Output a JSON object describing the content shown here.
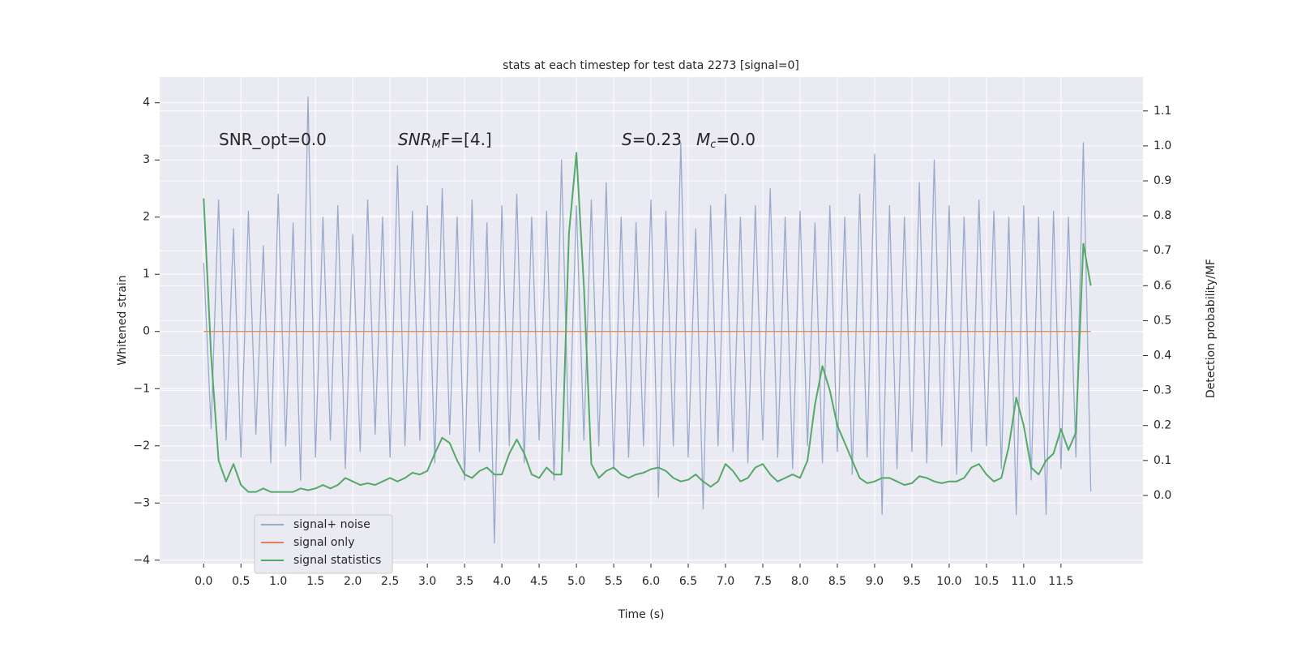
{
  "chart_data": {
    "type": "line",
    "title": "stats at each timestep for test data 2273 [signal=0]",
    "xlabel": "Time (s)",
    "ylabel": "Whitened strain",
    "y2label": "Detection probability/MF",
    "annotations": [
      [
        "SNR_opt=0.0"
      ],
      [
        "SNR",
        "M",
        "F=[4.]"
      ],
      [
        "S",
        "=0.23"
      ],
      [
        "M",
        "c",
        "=0.0"
      ]
    ],
    "x": [
      0,
      0.1,
      0.2,
      0.3,
      0.4,
      0.5,
      0.6,
      0.7,
      0.8,
      0.9,
      1,
      1.1,
      1.2,
      1.3,
      1.4,
      1.5,
      1.6,
      1.7,
      1.8,
      1.9,
      2,
      2.1,
      2.2,
      2.3,
      2.4,
      2.5,
      2.6,
      2.7,
      2.8,
      2.9,
      3,
      3.1,
      3.2,
      3.3,
      3.4,
      3.5,
      3.6,
      3.7,
      3.8,
      3.9,
      4,
      4.1,
      4.2,
      4.3,
      4.4,
      4.5,
      4.6,
      4.7,
      4.8,
      4.9,
      5,
      5.1,
      5.2,
      5.3,
      5.4,
      5.5,
      5.6,
      5.7,
      5.8,
      5.9,
      6,
      6.1,
      6.2,
      6.3,
      6.4,
      6.5,
      6.6,
      6.7,
      6.8,
      6.9,
      7,
      7.1,
      7.2,
      7.3,
      7.4,
      7.5,
      7.6,
      7.7,
      7.8,
      7.9,
      8,
      8.1,
      8.2,
      8.3,
      8.4,
      8.5,
      8.6,
      8.7,
      8.8,
      8.9,
      9,
      9.1,
      9.2,
      9.3,
      9.4,
      9.5,
      9.6,
      9.7,
      9.8,
      9.9,
      10,
      10.1,
      10.2,
      10.3,
      10.4,
      10.5,
      10.6,
      10.7,
      10.8,
      10.9,
      11,
      11.1,
      11.2,
      11.3,
      11.4,
      11.5,
      11.6,
      11.7,
      11.8,
      11.9
    ],
    "series": [
      {
        "name": "signal+ noise",
        "color": "#99aacd",
        "values": [
          1.2,
          -1.7,
          2.3,
          -1.9,
          1.8,
          -2.2,
          2.1,
          -1.8,
          1.5,
          -2.3,
          2.4,
          -2.0,
          1.9,
          -2.6,
          4.1,
          -2.2,
          2.0,
          -1.9,
          2.2,
          -2.4,
          1.7,
          -2.1,
          2.3,
          -1.8,
          2.0,
          -2.2,
          2.9,
          -2.0,
          2.1,
          -1.9,
          2.2,
          -2.3,
          2.5,
          -1.8,
          2.0,
          -2.6,
          2.3,
          -2.1,
          1.9,
          -3.7,
          2.2,
          -2.0,
          2.4,
          -2.3,
          2.0,
          -1.9,
          2.1,
          -2.6,
          3.0,
          -2.1,
          2.2,
          -1.9,
          2.3,
          -2.0,
          2.6,
          -2.4,
          2.0,
          -2.2,
          1.9,
          -2.0,
          2.3,
          -2.9,
          2.1,
          -2.0,
          3.3,
          -2.2,
          1.8,
          -3.1,
          2.2,
          -2.0,
          2.4,
          -2.1,
          2.0,
          -2.3,
          2.2,
          -1.9,
          2.5,
          -2.2,
          2.0,
          -2.4,
          2.1,
          -2.0,
          1.9,
          -2.3,
          2.2,
          -2.1,
          2.0,
          -2.5,
          2.4,
          -2.2,
          3.1,
          -3.2,
          2.2,
          -2.4,
          2.0,
          -2.1,
          2.6,
          -2.3,
          3.0,
          -2.0,
          2.2,
          -2.5,
          2.0,
          -2.1,
          2.3,
          -2.0,
          2.1,
          -2.4,
          2.0,
          -3.2,
          2.2,
          -2.6,
          2.0,
          -3.2,
          2.1,
          -2.4,
          2.0,
          -2.2,
          3.3,
          -2.8
        ]
      },
      {
        "name": "signal only",
        "color": "#dd8452",
        "values": [
          0,
          0,
          0,
          0,
          0,
          0,
          0,
          0,
          0,
          0,
          0,
          0,
          0,
          0,
          0,
          0,
          0,
          0,
          0,
          0,
          0,
          0,
          0,
          0,
          0,
          0,
          0,
          0,
          0,
          0,
          0,
          0,
          0,
          0,
          0,
          0,
          0,
          0,
          0,
          0,
          0,
          0,
          0,
          0,
          0,
          0,
          0,
          0,
          0,
          0,
          0,
          0,
          0,
          0,
          0,
          0,
          0,
          0,
          0,
          0,
          0,
          0,
          0,
          0,
          0,
          0,
          0,
          0,
          0,
          0,
          0,
          0,
          0,
          0,
          0,
          0,
          0,
          0,
          0,
          0,
          0,
          0,
          0,
          0,
          0,
          0,
          0,
          0,
          0,
          0,
          0,
          0,
          0,
          0,
          0,
          0,
          0,
          0,
          0,
          0,
          0,
          0,
          0,
          0,
          0,
          0,
          0,
          0,
          0,
          0,
          0,
          0,
          0,
          0,
          0,
          0,
          0,
          0,
          0,
          0
        ]
      },
      {
        "name": "signal statistics",
        "color": "#55a868",
        "axis": "y2",
        "values": [
          0.85,
          0.4,
          0.1,
          0.04,
          0.09,
          0.03,
          0.01,
          0.01,
          0.02,
          0.01,
          0.01,
          0.01,
          0.01,
          0.02,
          0.015,
          0.02,
          0.03,
          0.02,
          0.03,
          0.05,
          0.04,
          0.03,
          0.035,
          0.03,
          0.04,
          0.05,
          0.04,
          0.05,
          0.065,
          0.06,
          0.07,
          0.12,
          0.165,
          0.15,
          0.1,
          0.06,
          0.05,
          0.07,
          0.08,
          0.06,
          0.06,
          0.12,
          0.16,
          0.12,
          0.06,
          0.05,
          0.08,
          0.06,
          0.06,
          0.75,
          0.98,
          0.6,
          0.09,
          0.05,
          0.07,
          0.08,
          0.06,
          0.05,
          0.06,
          0.065,
          0.075,
          0.08,
          0.07,
          0.05,
          0.04,
          0.045,
          0.06,
          0.04,
          0.025,
          0.04,
          0.09,
          0.07,
          0.04,
          0.05,
          0.08,
          0.09,
          0.06,
          0.04,
          0.05,
          0.06,
          0.05,
          0.1,
          0.26,
          0.37,
          0.3,
          0.2,
          0.15,
          0.1,
          0.05,
          0.035,
          0.04,
          0.05,
          0.05,
          0.04,
          0.03,
          0.035,
          0.055,
          0.05,
          0.04,
          0.035,
          0.04,
          0.04,
          0.05,
          0.08,
          0.09,
          0.06,
          0.04,
          0.05,
          0.14,
          0.28,
          0.2,
          0.08,
          0.06,
          0.1,
          0.12,
          0.19,
          0.13,
          0.18,
          0.72,
          0.6
        ]
      }
    ],
    "xlim": [
      -0.59,
      12.6
    ],
    "xticks": [
      {
        "value": 0,
        "label": "0.0"
      },
      0.5,
      {
        "value": 1,
        "label": "1.0"
      },
      1.5,
      {
        "value": 2,
        "label": "2.0"
      },
      2.5,
      {
        "value": 3,
        "label": "3.0"
      },
      3.5,
      {
        "value": 4,
        "label": "4.0"
      },
      4.5,
      {
        "value": 5,
        "label": "5.0"
      },
      5.5,
      {
        "value": 6,
        "label": "6.0"
      },
      6.5,
      {
        "value": 7,
        "label": "7.0"
      },
      7.5,
      {
        "value": 8,
        "label": "8.0"
      },
      8.5,
      {
        "value": 9,
        "label": "9.0"
      },
      9.5,
      {
        "value": 10,
        "label": "10.0"
      },
      10.5,
      {
        "value": 11,
        "label": "11.0"
      },
      11.5
    ],
    "ylim": [
      -4.06,
      4.45
    ],
    "yticks": [
      {
        "value": -4,
        "label": "−4"
      },
      {
        "value": -3,
        "label": "−3"
      },
      {
        "value": -2,
        "label": "−2"
      },
      {
        "value": -1,
        "label": "−1"
      },
      0,
      1,
      2,
      3,
      4
    ],
    "y2lim": [
      -0.195,
      1.197
    ],
    "y2ticks": [
      {
        "value": 0,
        "label": "0.0"
      },
      0.1,
      0.2,
      0.3,
      0.4,
      0.5,
      0.6,
      0.7,
      0.8,
      0.9,
      {
        "value": 1,
        "label": "1.0"
      },
      1.1
    ],
    "grid": true,
    "background": "#eaeaf2",
    "legend": "lower left"
  }
}
